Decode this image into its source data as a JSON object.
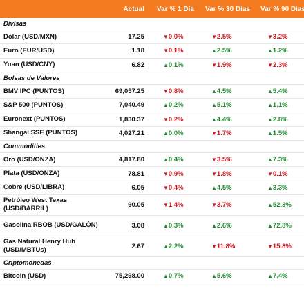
{
  "header": {
    "actual": "Actual",
    "d1": "Var % 1 Día",
    "d30": "Var % 30 Dias",
    "d90": "Var % 90 Dias"
  },
  "colors": {
    "header_bg": "#f47b20",
    "up": "#1e8a2e",
    "down": "#d0141b"
  },
  "sections": [
    {
      "title": "Divisas",
      "rows": [
        {
          "name": "Dólar (USD/MXN)",
          "actual": "17.25",
          "d1": "0.0%",
          "d1_dir": "down",
          "d30": "2.5%",
          "d30_dir": "down",
          "d90": "3.2%",
          "d90_dir": "down"
        },
        {
          "name": "Euro (EUR/USD)",
          "actual": "1.18",
          "d1": "0.1%",
          "d1_dir": "down",
          "d30": "2.5%",
          "d30_dir": "up",
          "d90": "1.2%",
          "d90_dir": "up"
        },
        {
          "name": "Yuan (USD/CNY)",
          "actual": "6.82",
          "d1": "0.1%",
          "d1_dir": "up",
          "d30": "1.9%",
          "d30_dir": "down",
          "d90": "2.3%",
          "d90_dir": "down"
        }
      ]
    },
    {
      "title": "Bolsas de Valores",
      "rows": [
        {
          "name": "BMV IPC (PUNTOS)",
          "actual": "69,057.25",
          "d1": "0.8%",
          "d1_dir": "down",
          "d30": "4.5%",
          "d30_dir": "up",
          "d90": "5.4%",
          "d90_dir": "up"
        },
        {
          "name": "S&P 500 (PUNTOS)",
          "actual": "7,040.49",
          "d1": "0.2%",
          "d1_dir": "up",
          "d30": "5.1%",
          "d30_dir": "up",
          "d90": "1.1%",
          "d90_dir": "up"
        },
        {
          "name": "Euronext (PUNTOS)",
          "actual": "1,830.37",
          "d1": "0.2%",
          "d1_dir": "down",
          "d30": "4.4%",
          "d30_dir": "up",
          "d90": "2.8%",
          "d90_dir": "up"
        },
        {
          "name": "Shangai SSE (PUNTOS)",
          "actual": "4,027.21",
          "d1": "0.0%",
          "d1_dir": "up",
          "d30": "1.7%",
          "d30_dir": "down",
          "d90": "1.5%",
          "d90_dir": "up"
        }
      ]
    },
    {
      "title": "Commodities",
      "rows": [
        {
          "name": "Oro (USD/ONZA)",
          "actual": "4,817.80",
          "d1": "0.4%",
          "d1_dir": "up",
          "d30": "3.5%",
          "d30_dir": "down",
          "d90": "7.3%",
          "d90_dir": "up"
        },
        {
          "name": "Plata (USD/ONZA)",
          "actual": "78.81",
          "d1": "0.9%",
          "d1_dir": "down",
          "d30": "1.8%",
          "d30_dir": "down",
          "d90": "0.1%",
          "d90_dir": "down"
        },
        {
          "name": "Cobre (USD/LIBRA)",
          "actual": "6.05",
          "d1": "0.4%",
          "d1_dir": "down",
          "d30": "4.5%",
          "d30_dir": "up",
          "d90": "3.3%",
          "d90_dir": "up"
        },
        {
          "name": "Petróleo West Texas (USD/BARRIL)",
          "actual": "90.05",
          "d1": "1.4%",
          "d1_dir": "down",
          "d30": "3.7%",
          "d30_dir": "down",
          "d90": "52.3%",
          "d90_dir": "up",
          "tall": true
        },
        {
          "name": "Gasolina RBOB (USD/GALÓN)",
          "actual": "3.08",
          "d1": "0.3%",
          "d1_dir": "up",
          "d30": "2.6%",
          "d30_dir": "up",
          "d90": "72.8%",
          "d90_dir": "up",
          "tall": true
        },
        {
          "name": "Gas Natural Henry Hub (USD/MBTUs)",
          "actual": "2.67",
          "d1": "2.2%",
          "d1_dir": "up",
          "d30": "11.8%",
          "d30_dir": "down",
          "d90": "15.8%",
          "d90_dir": "down",
          "tall": true
        }
      ]
    },
    {
      "title": "Criptomonedas",
      "rows": [
        {
          "name": "Bitcoin (USD)",
          "actual": "75,298.00",
          "d1": "0.7%",
          "d1_dir": "up",
          "d30": "5.6%",
          "d30_dir": "up",
          "d90": "7.4%",
          "d90_dir": "up"
        }
      ]
    }
  ]
}
